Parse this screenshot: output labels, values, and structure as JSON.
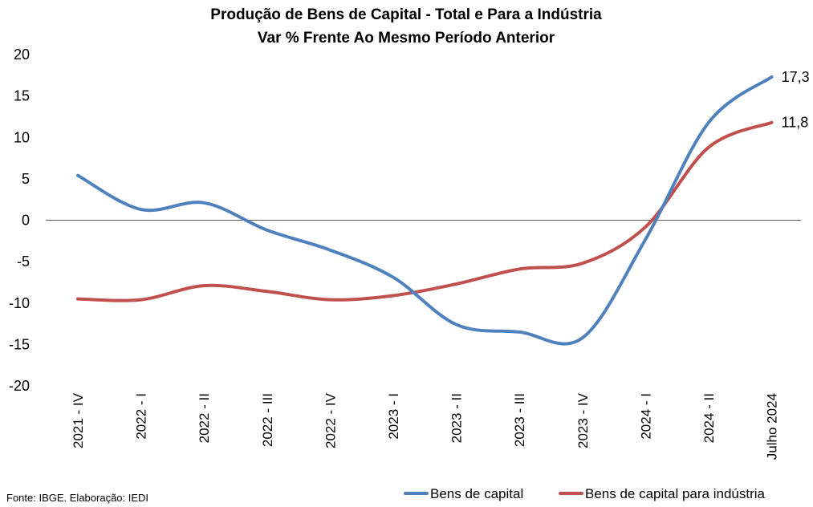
{
  "chart_data": {
    "type": "line",
    "title": "Produção de Bens de Capital - Total e Para a Indústria",
    "subtitle": "Var % Frente Ao Mesmo Período Anterior",
    "categories": [
      "2021 - IV",
      "2022 - I",
      "2022 - II",
      "2022 - III",
      "2022 - IV",
      "2023 - I",
      "2023 - II",
      "2023 - III",
      "2023 - IV",
      "2024 - I",
      "2024 - II",
      "Julho 2024"
    ],
    "ylim": [
      -20,
      20
    ],
    "yticks": [
      "20",
      "15",
      "10",
      "5",
      "0",
      "-5",
      "-10",
      "-15",
      "-20"
    ],
    "ytick_values": [
      20,
      15,
      10,
      5,
      0,
      -5,
      -10,
      -15,
      -20
    ],
    "grid": false,
    "zero_line": true,
    "legend_position": "bottom-right",
    "series": [
      {
        "name": "Bens de capital",
        "color": "#4F81BD",
        "values": [
          5.4,
          1.3,
          2.1,
          -1.2,
          -3.6,
          -6.9,
          -12.6,
          -13.5,
          -14.2,
          -2.3,
          11.8,
          17.3
        ],
        "end_label": "17,3"
      },
      {
        "name": "Bens de capital para indústria",
        "color": "#C0504D",
        "values": [
          -9.5,
          -9.6,
          -7.9,
          -8.6,
          -9.6,
          -9.1,
          -7.7,
          -5.9,
          -5.2,
          -0.8,
          8.8,
          11.8
        ],
        "end_label": "11,8"
      }
    ]
  },
  "footer": {
    "source": "Fonte: IBGE. Elaboração: IEDI"
  }
}
